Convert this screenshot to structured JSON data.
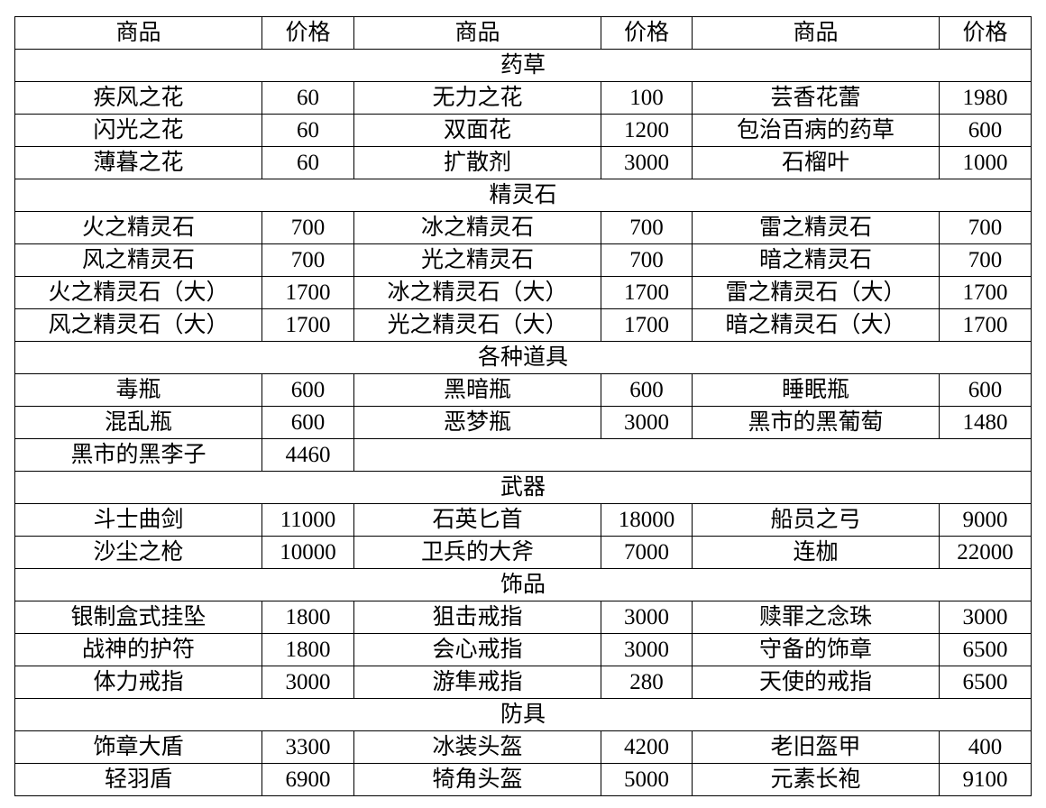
{
  "table": {
    "header": [
      "商品",
      "价格",
      "商品",
      "价格",
      "商品",
      "价格"
    ],
    "sections": [
      {
        "title": "药草",
        "rows": [
          [
            "疾风之花",
            60,
            "无力之花",
            100,
            "芸香花蕾",
            1980
          ],
          [
            "闪光之花",
            60,
            "双面花",
            1200,
            "包治百病的药草",
            600
          ],
          [
            "薄暮之花",
            60,
            "扩散剂",
            3000,
            "石榴叶",
            1000
          ]
        ]
      },
      {
        "title": "精灵石",
        "rows": [
          [
            "火之精灵石",
            700,
            "冰之精灵石",
            700,
            "雷之精灵石",
            700
          ],
          [
            "风之精灵石",
            700,
            "光之精灵石",
            700,
            "暗之精灵石",
            700
          ],
          [
            "火之精灵石（大）",
            1700,
            "冰之精灵石（大）",
            1700,
            "雷之精灵石（大）",
            1700
          ],
          [
            "风之精灵石（大）",
            1700,
            "光之精灵石（大）",
            1700,
            "暗之精灵石（大）",
            1700
          ]
        ]
      },
      {
        "title": "各种道具",
        "rows": [
          [
            "毒瓶",
            600,
            "黑暗瓶",
            600,
            "睡眠瓶",
            600
          ],
          [
            "混乱瓶",
            600,
            "恶梦瓶",
            3000,
            "黑市的黑葡萄",
            1480
          ],
          [
            "黑市的黑李子",
            4460
          ]
        ]
      },
      {
        "title": "武器",
        "rows": [
          [
            "斗士曲剑",
            11000,
            "石英匕首",
            18000,
            "船员之弓",
            9000
          ],
          [
            "沙尘之枪",
            10000,
            "卫兵的大斧",
            7000,
            "连枷",
            22000
          ]
        ]
      },
      {
        "title": "饰品",
        "rows": [
          [
            "银制盒式挂坠",
            1800,
            "狙击戒指",
            3000,
            "赎罪之念珠",
            3000
          ],
          [
            "战神的护符",
            1800,
            "会心戒指",
            3000,
            "守备的饰章",
            6500
          ],
          [
            "体力戒指",
            3000,
            "游隼戒指",
            280,
            "天使的戒指",
            6500
          ]
        ]
      },
      {
        "title": "防具",
        "rows": [
          [
            "饰章大盾",
            3300,
            "冰装头盔",
            4200,
            "老旧盔甲",
            400
          ],
          [
            "轻羽盾",
            6900,
            "犄角头盔",
            5000,
            "元素长袍",
            9100
          ]
        ]
      }
    ]
  }
}
